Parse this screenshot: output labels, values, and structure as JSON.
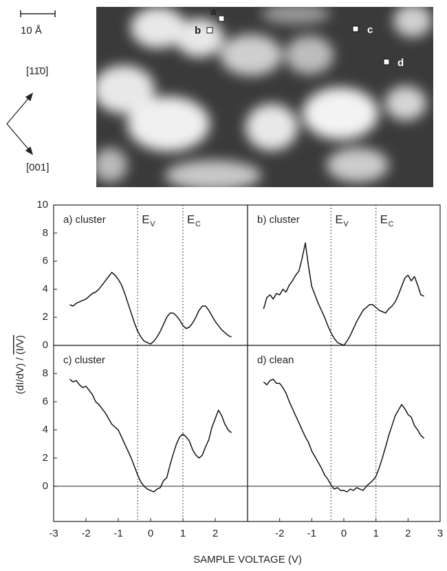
{
  "image": {
    "scale_label": "10 Å",
    "direction_1": "[11̄0]",
    "direction_2": "[001]",
    "points": [
      "a",
      "b",
      "c",
      "d"
    ]
  },
  "xlabel": "SAMPLE VOLTAGE (V)",
  "ylabel": "(dI/dV) / ",
  "ylabel_overline": "(I/V)",
  "chart_data": [
    {
      "type": "line",
      "label": "a) cluster",
      "color": "#111111",
      "x": [
        -2.5,
        -2.4,
        -2.3,
        -2.2,
        -2.1,
        -2.0,
        -1.9,
        -1.8,
        -1.7,
        -1.6,
        -1.5,
        -1.4,
        -1.3,
        -1.2,
        -1.1,
        -1.0,
        -0.9,
        -0.8,
        -0.7,
        -0.6,
        -0.5,
        -0.4,
        -0.3,
        -0.2,
        -0.1,
        0.0,
        0.1,
        0.2,
        0.3,
        0.4,
        0.5,
        0.6,
        0.7,
        0.8,
        0.9,
        1.0,
        1.1,
        1.2,
        1.3,
        1.4,
        1.5,
        1.6,
        1.7,
        1.8,
        1.9,
        2.0,
        2.1,
        2.2,
        2.3,
        2.4,
        2.5
      ],
      "values": [
        2.9,
        2.8,
        3.0,
        3.1,
        3.2,
        3.3,
        3.5,
        3.7,
        3.8,
        4.0,
        4.3,
        4.6,
        4.9,
        5.2,
        5.0,
        4.7,
        4.3,
        3.7,
        3.0,
        2.3,
        1.6,
        1.0,
        0.6,
        0.3,
        0.2,
        0.1,
        0.3,
        0.6,
        1.0,
        1.5,
        2.0,
        2.3,
        2.3,
        2.1,
        1.8,
        1.4,
        1.2,
        1.3,
        1.6,
        2.0,
        2.5,
        2.8,
        2.8,
        2.5,
        2.1,
        1.7,
        1.4,
        1.1,
        0.9,
        0.7,
        0.6
      ],
      "xlim": [
        -3,
        3
      ],
      "ylim": [
        0,
        10
      ],
      "yticks": [
        0,
        2,
        4,
        6,
        8,
        10
      ],
      "vlines": [
        {
          "x": -0.4,
          "label": "E",
          "sub": "V"
        },
        {
          "x": 1.0,
          "label": "E",
          "sub": "C"
        }
      ]
    },
    {
      "type": "line",
      "label": "b) cluster",
      "color": "#111111",
      "x": [
        -2.5,
        -2.4,
        -2.3,
        -2.2,
        -2.1,
        -2.0,
        -1.9,
        -1.8,
        -1.7,
        -1.6,
        -1.5,
        -1.4,
        -1.3,
        -1.2,
        -1.1,
        -1.0,
        -0.9,
        -0.8,
        -0.7,
        -0.6,
        -0.5,
        -0.4,
        -0.3,
        -0.2,
        -0.1,
        0.0,
        0.1,
        0.2,
        0.3,
        0.4,
        0.5,
        0.6,
        0.7,
        0.8,
        0.9,
        1.0,
        1.1,
        1.2,
        1.3,
        1.4,
        1.5,
        1.6,
        1.7,
        1.8,
        1.9,
        2.0,
        2.1,
        2.2,
        2.3,
        2.4,
        2.5
      ],
      "values": [
        2.6,
        3.4,
        3.6,
        3.3,
        3.7,
        3.6,
        4.0,
        3.8,
        4.3,
        4.6,
        5.0,
        5.3,
        6.2,
        7.3,
        5.6,
        4.2,
        3.6,
        3.0,
        2.5,
        2.0,
        1.4,
        0.9,
        0.5,
        0.2,
        0.1,
        0.0,
        0.3,
        0.7,
        1.2,
        1.7,
        2.1,
        2.5,
        2.7,
        2.9,
        2.9,
        2.7,
        2.5,
        2.4,
        2.3,
        2.6,
        2.8,
        3.1,
        3.6,
        4.2,
        4.8,
        5.0,
        4.6,
        4.9,
        4.3,
        3.6,
        3.5
      ],
      "xlim": [
        -3,
        3
      ],
      "ylim": [
        0,
        10
      ],
      "vlines": [
        {
          "x": -0.4,
          "label": "E",
          "sub": "V"
        },
        {
          "x": 1.0,
          "label": "E",
          "sub": "C"
        }
      ]
    },
    {
      "type": "line",
      "label": "c) cluster",
      "color": "#111111",
      "x": [
        -2.5,
        -2.4,
        -2.3,
        -2.2,
        -2.1,
        -2.0,
        -1.9,
        -1.8,
        -1.7,
        -1.6,
        -1.5,
        -1.4,
        -1.3,
        -1.2,
        -1.1,
        -1.0,
        -0.9,
        -0.8,
        -0.7,
        -0.6,
        -0.5,
        -0.4,
        -0.3,
        -0.2,
        -0.1,
        0.0,
        0.1,
        0.2,
        0.3,
        0.4,
        0.5,
        0.6,
        0.7,
        0.8,
        0.9,
        1.0,
        1.1,
        1.2,
        1.3,
        1.4,
        1.5,
        1.6,
        1.7,
        1.8,
        1.9,
        2.0,
        2.1,
        2.2,
        2.3,
        2.4,
        2.5
      ],
      "values": [
        7.6,
        7.4,
        7.5,
        7.2,
        7.0,
        7.1,
        6.8,
        6.5,
        6.0,
        5.8,
        5.5,
        5.2,
        4.8,
        4.4,
        4.2,
        4.0,
        3.5,
        3.0,
        2.5,
        2.0,
        1.4,
        0.8,
        0.3,
        0.0,
        -0.2,
        -0.3,
        -0.4,
        -0.2,
        -0.1,
        0.4,
        0.6,
        1.5,
        2.3,
        3.0,
        3.5,
        3.7,
        3.5,
        3.2,
        2.6,
        2.2,
        2.0,
        2.2,
        2.8,
        3.3,
        4.2,
        4.8,
        5.4,
        5.0,
        4.4,
        4.0,
        3.8
      ],
      "xlim": [
        -3,
        3
      ],
      "ylim": [
        -2.5,
        10
      ],
      "yticks": [
        0,
        2,
        4,
        6,
        8
      ],
      "xticks": [
        -3,
        -2,
        -1,
        0,
        1,
        2
      ],
      "zero_line": true,
      "vlines": [
        {
          "x": -0.4
        },
        {
          "x": 1.0
        }
      ]
    },
    {
      "type": "line",
      "label": "d) clean",
      "color": "#111111",
      "x": [
        -2.5,
        -2.4,
        -2.3,
        -2.2,
        -2.1,
        -2.0,
        -1.9,
        -1.8,
        -1.7,
        -1.6,
        -1.5,
        -1.4,
        -1.3,
        -1.2,
        -1.1,
        -1.0,
        -0.9,
        -0.8,
        -0.7,
        -0.6,
        -0.5,
        -0.4,
        -0.3,
        -0.2,
        -0.1,
        0.0,
        0.1,
        0.2,
        0.3,
        0.4,
        0.5,
        0.6,
        0.7,
        0.8,
        0.9,
        1.0,
        1.1,
        1.2,
        1.3,
        1.4,
        1.5,
        1.6,
        1.7,
        1.8,
        1.9,
        2.0,
        2.1,
        2.2,
        2.3,
        2.4,
        2.5
      ],
      "values": [
        7.4,
        7.2,
        7.5,
        7.6,
        7.3,
        7.3,
        7.0,
        6.6,
        6.0,
        5.5,
        5.0,
        4.5,
        4.0,
        3.5,
        3.1,
        2.5,
        2.1,
        1.7,
        1.3,
        0.8,
        0.5,
        0.1,
        -0.2,
        -0.1,
        -0.3,
        -0.3,
        -0.4,
        -0.2,
        -0.3,
        -0.1,
        -0.2,
        -0.3,
        0.0,
        0.2,
        0.4,
        0.7,
        1.3,
        2.0,
        2.8,
        3.6,
        4.3,
        5.0,
        5.4,
        5.8,
        5.5,
        5.1,
        4.9,
        4.3,
        4.0,
        3.6,
        3.4
      ],
      "xlim": [
        -3,
        3
      ],
      "ylim": [
        -2.5,
        10
      ],
      "xticks": [
        -2,
        -1,
        0,
        1,
        2,
        3
      ],
      "zero_line": true,
      "vlines": [
        {
          "x": -0.4
        },
        {
          "x": 1.0
        }
      ]
    }
  ]
}
